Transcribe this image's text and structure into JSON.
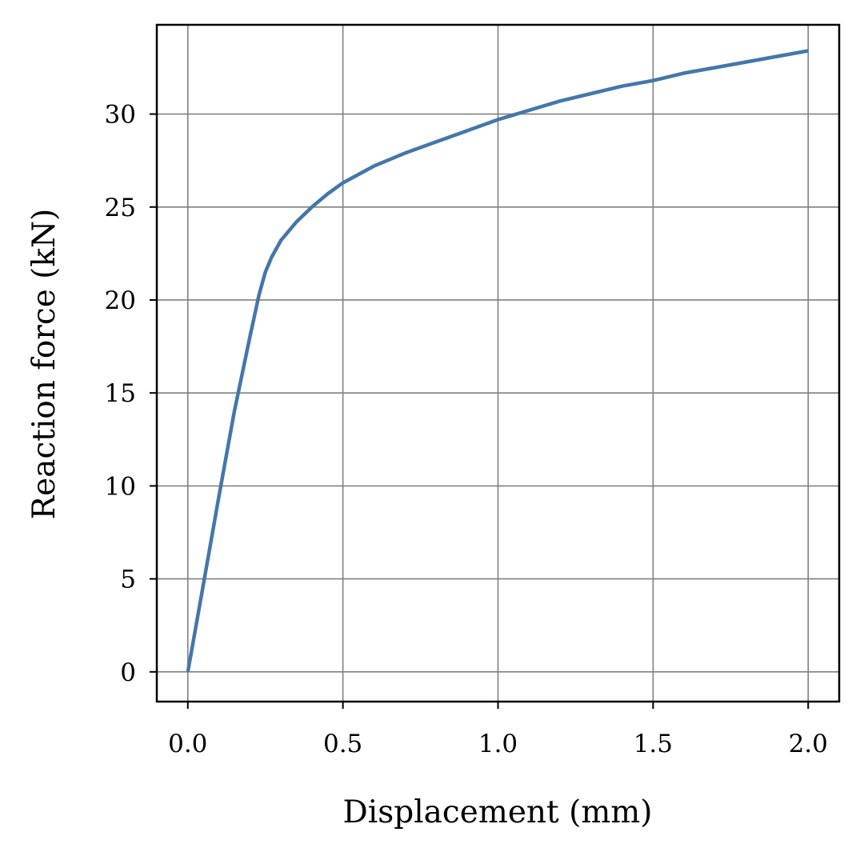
{
  "chart_data": {
    "type": "line",
    "title": "",
    "xlabel": "Displacement (mm)",
    "ylabel": "Reaction force (kN)",
    "xlim": [
      -0.1,
      2.1
    ],
    "ylim": [
      -1.6,
      34.8
    ],
    "xticks": [
      0.0,
      0.5,
      1.0,
      1.5,
      2.0
    ],
    "xtick_labels": [
      "0.0",
      "0.5",
      "1.0",
      "1.5",
      "2.0"
    ],
    "yticks": [
      0,
      5,
      10,
      15,
      20,
      25,
      30
    ],
    "ytick_labels": [
      "0",
      "5",
      "10",
      "15",
      "20",
      "25",
      "30"
    ],
    "grid": true,
    "legend": "none",
    "colors": {
      "line": "#4477aa",
      "grid": "#808080",
      "axes": "#000000"
    },
    "series": [
      {
        "x": [
          0.0,
          0.05,
          0.1,
          0.15,
          0.2,
          0.23,
          0.25,
          0.27,
          0.3,
          0.35,
          0.4,
          0.45,
          0.5,
          0.6,
          0.7,
          0.8,
          0.9,
          1.0,
          1.1,
          1.2,
          1.3,
          1.4,
          1.5,
          1.6,
          1.7,
          1.8,
          1.9,
          2.0
        ],
        "y": [
          0.0,
          4.7,
          9.4,
          14.0,
          18.0,
          20.3,
          21.5,
          22.3,
          23.2,
          24.2,
          25.0,
          25.7,
          26.3,
          27.2,
          27.9,
          28.5,
          29.1,
          29.7,
          30.2,
          30.7,
          31.1,
          31.5,
          31.8,
          32.2,
          32.5,
          32.8,
          33.1,
          33.4
        ]
      }
    ]
  }
}
